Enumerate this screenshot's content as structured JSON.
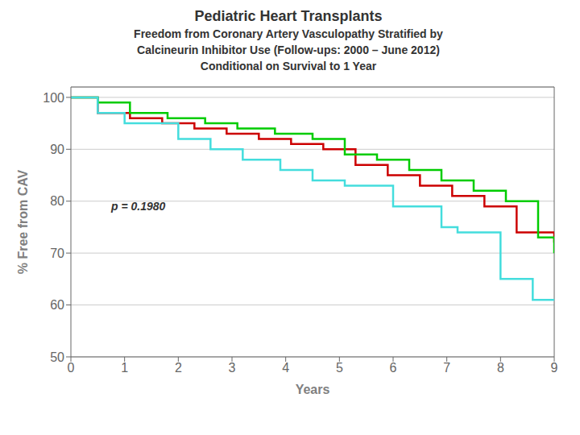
{
  "chart_data": {
    "type": "line",
    "line_style": "step",
    "title": "Pediatric Heart Transplants",
    "subtitle": [
      "Freedom from Coronary Artery Vasculopathy Stratified by",
      "Calcineurin Inhibitor Use (Follow-ups: 2000 – June 2012)",
      "Conditional on Survival to 1 Year"
    ],
    "x_label": "Years",
    "y_label": "% Free from CAV",
    "annotations": [
      "p = 0.1980"
    ],
    "xlim": [
      0,
      9
    ],
    "ylim": [
      50,
      102
    ],
    "xticks": [
      0,
      1,
      2,
      3,
      4,
      5,
      6,
      7,
      8,
      9
    ],
    "yticks": [
      50,
      60,
      70,
      80,
      90,
      100
    ],
    "grid": true,
    "series": [
      {
        "color": "#cc0000",
        "x": [
          0,
          0.35,
          0.5,
          0.9,
          1.1,
          1.4,
          1.7,
          2.0,
          2.3,
          2.6,
          2.9,
          3.2,
          3.5,
          3.8,
          4.1,
          4.4,
          4.7,
          5.0,
          5.3,
          5.6,
          5.9,
          6.2,
          6.5,
          6.8,
          7.1,
          7.4,
          7.7,
          8.0,
          8.3,
          8.6,
          9.0
        ],
        "values": [
          100,
          100,
          97,
          97,
          96,
          96,
          95,
          95,
          94,
          94,
          93,
          93,
          92,
          92,
          91,
          91,
          90,
          90,
          87,
          87,
          85,
          85,
          83,
          83,
          81,
          81,
          79,
          79,
          74,
          74,
          72
        ]
      },
      {
        "color": "#00cc00",
        "x": [
          0,
          0.35,
          0.5,
          0.9,
          1.1,
          1.5,
          1.8,
          2.1,
          2.5,
          2.8,
          3.1,
          3.5,
          3.8,
          4.1,
          4.5,
          4.8,
          5.1,
          5.4,
          5.7,
          6.0,
          6.3,
          6.6,
          6.9,
          7.2,
          7.5,
          7.8,
          8.1,
          8.4,
          8.7,
          9.0
        ],
        "values": [
          100,
          100,
          99,
          99,
          97,
          97,
          96,
          96,
          95,
          95,
          94,
          94,
          93,
          93,
          92,
          92,
          89,
          89,
          88,
          88,
          86,
          86,
          84,
          84,
          82,
          82,
          80,
          80,
          73,
          70
        ]
      },
      {
        "color": "#44dddd",
        "x": [
          0,
          0.35,
          0.5,
          0.8,
          1.0,
          1.5,
          2.0,
          2.3,
          2.6,
          2.9,
          3.2,
          3.6,
          3.9,
          4.2,
          4.5,
          4.8,
          5.1,
          5.5,
          6.0,
          6.5,
          6.9,
          7.0,
          7.2,
          7.5,
          7.8,
          8.0,
          8.3,
          8.6,
          9.0
        ],
        "values": [
          100,
          100,
          97,
          97,
          95,
          95,
          92,
          92,
          90,
          90,
          88,
          88,
          86,
          86,
          84,
          84,
          83,
          83,
          79,
          79,
          75,
          75,
          74,
          74,
          74,
          65,
          65,
          61,
          61
        ]
      }
    ]
  }
}
